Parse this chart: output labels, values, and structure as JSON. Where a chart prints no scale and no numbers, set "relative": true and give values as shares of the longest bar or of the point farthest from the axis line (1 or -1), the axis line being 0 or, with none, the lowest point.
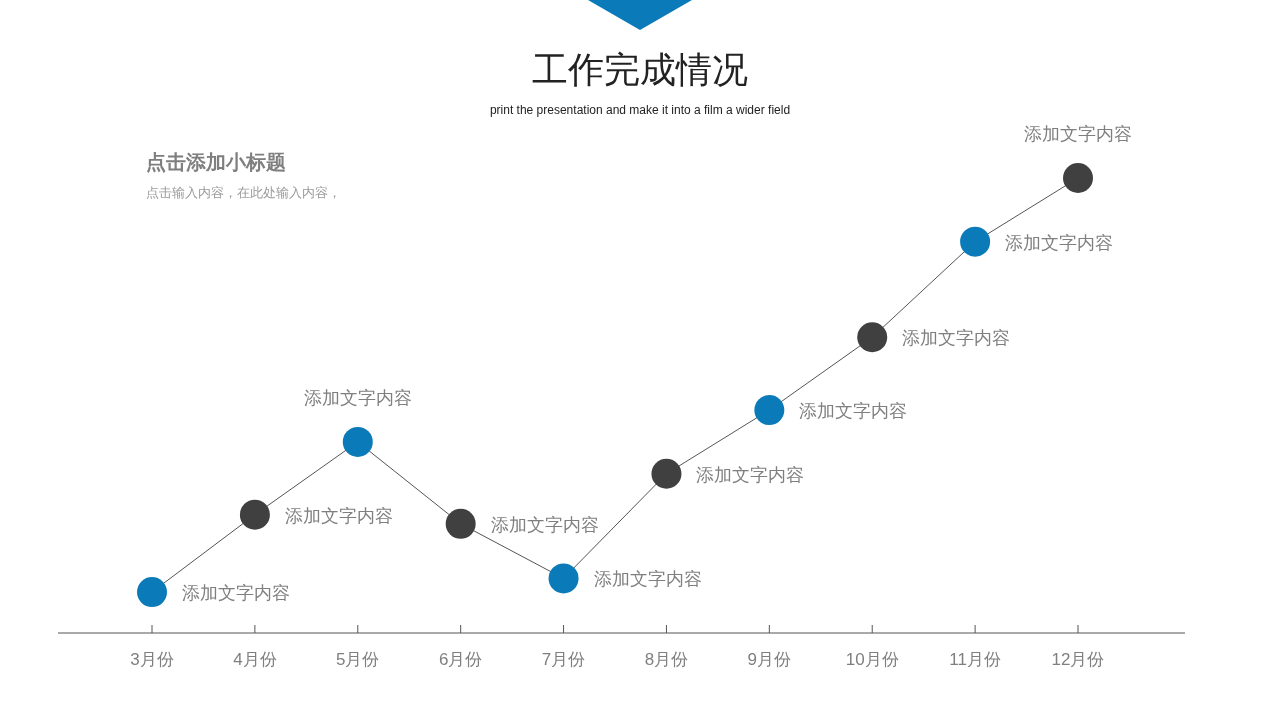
{
  "chart_data": {
    "type": "line",
    "title": "工作完成情况",
    "subtitle": "print the presentation and make it into a film a wider field",
    "categories": [
      "3月份",
      "4月份",
      "5月份",
      "6月份",
      "7月份",
      "8月份",
      "9月份",
      "10月份",
      "11月份",
      "12月份"
    ],
    "relative": true,
    "marker": "circle",
    "line_style": "solid",
    "series": [
      {
        "color": "#555555",
        "colors": [
          "#0a7ab8",
          "#404040",
          "#0a7ab8",
          "#404040",
          "#0a7ab8",
          "#404040",
          "#0a7ab8",
          "#404040",
          "#0a7ab8",
          "#404040"
        ],
        "values": [
          0.09,
          0.26,
          0.42,
          0.24,
          0.12,
          0.35,
          0.49,
          0.65,
          0.86,
          1.0
        ]
      }
    ],
    "annotations": [
      "点击添加小标题",
      "点击输入内容，在此处输入内容，",
      {
        "text": "添加文字内容",
        "x": "3月份",
        "y": 0.09
      },
      {
        "text": "添加文字内容",
        "x": "4月份",
        "y": 0.26
      },
      {
        "text": "添加文字内容",
        "x": "5月份",
        "y": 0.42
      },
      {
        "text": "添加文字内容",
        "x": "6月份",
        "y": 0.24
      },
      {
        "text": "添加文字内容",
        "x": "7月份",
        "y": 0.12
      },
      {
        "text": "添加文字内容",
        "x": "8月份",
        "y": 0.35
      },
      {
        "text": "添加文字内容",
        "x": "9月份",
        "y": 0.49
      },
      {
        "text": "添加文字内容",
        "x": "10月份",
        "y": 0.65
      },
      {
        "text": "添加文字内容",
        "x": "11月份",
        "y": 0.86
      },
      {
        "text": "添加文字内容",
        "x": "12月份",
        "y": 1.0
      }
    ]
  }
}
